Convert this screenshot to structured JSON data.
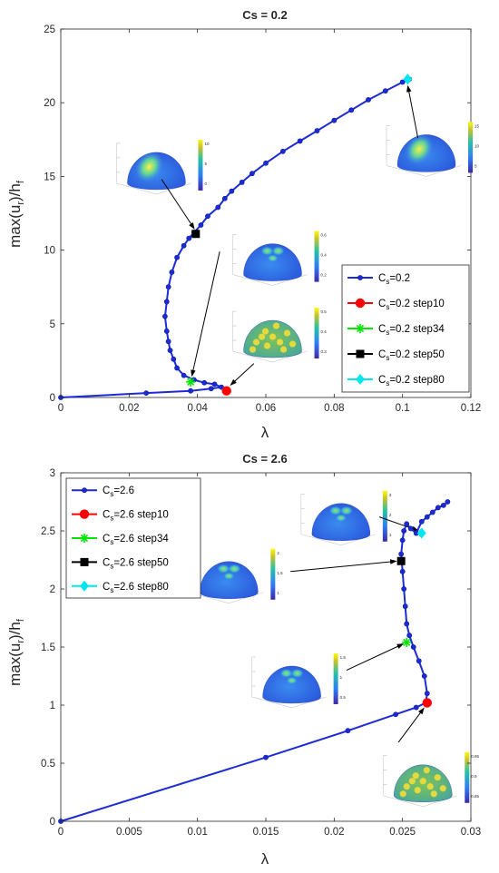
{
  "chart_data": [
    {
      "type": "line",
      "title": "Cs = 0.2",
      "xlabel": "λ",
      "ylabel": "max(u_r)/h_f",
      "ylabel_parts": {
        "a": "max(u",
        "sub1": "r",
        "b": ")/h",
        "sub2": "f"
      },
      "xlim": [
        0,
        0.12
      ],
      "ylim": [
        0,
        25
      ],
      "xticks": [
        "0",
        "0.02",
        "0.04",
        "0.06",
        "0.08",
        "0.1",
        "0.12"
      ],
      "yticks": [
        "0",
        "5",
        "10",
        "15",
        "20",
        "25"
      ],
      "legend_position": "lower-right",
      "series": [
        {
          "name": "C_s=0.2",
          "legend_base": "C",
          "legend_sub": "s",
          "legend_rest": "=0.2",
          "color": "#1c2bd6",
          "marker": "circle-small",
          "x": [
            0,
            0.025,
            0.038,
            0.044,
            0.047,
            0.045,
            0.042,
            0.039,
            0.036,
            0.034,
            0.033,
            0.032,
            0.0315,
            0.031,
            0.0305,
            0.031,
            0.0315,
            0.0325,
            0.034,
            0.036,
            0.0375,
            0.039,
            0.041,
            0.043,
            0.046,
            0.048,
            0.05,
            0.053,
            0.056,
            0.06,
            0.065,
            0.07,
            0.075,
            0.08,
            0.085,
            0.09,
            0.095,
            0.1,
            0.102
          ],
          "y": [
            0,
            0.3,
            0.45,
            0.6,
            0.7,
            0.9,
            1.0,
            1.2,
            1.5,
            2.0,
            2.6,
            3.2,
            3.8,
            4.5,
            5.5,
            6.5,
            7.5,
            8.5,
            9.5,
            10.3,
            10.8,
            11.2,
            11.7,
            12.3,
            12.9,
            13.5,
            14.0,
            14.6,
            15.2,
            15.9,
            16.7,
            17.4,
            18.1,
            18.8,
            19.5,
            20.2,
            20.8,
            21.4,
            21.6
          ]
        },
        {
          "name": "C_s=0.2 step10",
          "legend_base": "C",
          "legend_sub": "s",
          "legend_rest": "=0.2 step10",
          "color": "#ff0000",
          "marker": "circle",
          "x": [
            0.0485
          ],
          "y": [
            0.45
          ]
        },
        {
          "name": "C_s=0.2 step34",
          "legend_base": "C",
          "legend_sub": "s",
          "legend_rest": "=0.2 step34",
          "color": "#00e600",
          "marker": "asterisk",
          "x": [
            0.038
          ],
          "y": [
            1.05
          ]
        },
        {
          "name": "C_s=0.2 step50",
          "legend_base": "C",
          "legend_sub": "s",
          "legend_rest": "=0.2 step50",
          "color": "#000000",
          "marker": "square",
          "x": [
            0.0395
          ],
          "y": [
            11.1
          ]
        },
        {
          "name": "C_s=0.2 step80",
          "legend_base": "C",
          "legend_sub": "s",
          "legend_rest": "=0.2 step80",
          "color": "#00e5ee",
          "marker": "diamond",
          "x": [
            0.1015
          ],
          "y": [
            21.6
          ]
        }
      ],
      "arrows": [
        {
          "from": [
            0.0295,
            14.8
          ],
          "to": [
            0.0392,
            11.4
          ]
        },
        {
          "from": [
            0.0465,
            9.9
          ],
          "to": [
            0.0383,
            1.4
          ]
        },
        {
          "from": [
            0.0565,
            2.3
          ],
          "to": [
            0.0495,
            0.8
          ]
        },
        {
          "from": [
            0.1045,
            17.6
          ],
          "to": [
            0.1015,
            21.2
          ]
        }
      ],
      "insets": [
        {
          "at": [
            0.028,
            15.4
          ],
          "colormap": "spot-large",
          "colorbar_ticks": [
            "10",
            "5",
            "0"
          ]
        },
        {
          "at": [
            0.062,
            9.2
          ],
          "colormap": "spot-top",
          "colorbar_ticks": [
            "0.6",
            "0.4",
            "0.2"
          ]
        },
        {
          "at": [
            0.062,
            4.0
          ],
          "colormap": "polka",
          "colorbar_ticks": [
            "0.5",
            "0.4",
            "0.3"
          ]
        },
        {
          "at": [
            0.107,
            16.6
          ],
          "colormap": "spot-large",
          "colorbar_ticks": [
            "15",
            "10",
            "5"
          ]
        }
      ]
    },
    {
      "type": "line",
      "title": "Cs = 2.6",
      "xlabel": "λ",
      "ylabel": "max(u_r)/h_f",
      "ylabel_parts": {
        "a": "max(u",
        "sub1": "r",
        "b": ")/h",
        "sub2": "f"
      },
      "xlim": [
        0,
        0.03
      ],
      "ylim": [
        0,
        3
      ],
      "xticks": [
        "0",
        "0.005",
        "0.01",
        "0.015",
        "0.02",
        "0.025",
        "0.03"
      ],
      "yticks": [
        "0",
        "0.5",
        "1",
        "1.5",
        "2",
        "2.5",
        "3"
      ],
      "legend_position": "upper-left",
      "series": [
        {
          "name": "C_s=2.6",
          "legend_base": "C",
          "legend_sub": "s",
          "legend_rest": "=2.6",
          "color": "#1c2bd6",
          "marker": "circle-small",
          "x": [
            0,
            0.015,
            0.021,
            0.0245,
            0.026,
            0.0267,
            0.0268,
            0.0266,
            0.0262,
            0.0258,
            0.0255,
            0.0253,
            0.0252,
            0.0251,
            0.025,
            0.0249,
            0.025,
            0.0251,
            0.0253,
            0.0256,
            0.026,
            0.0264,
            0.0268,
            0.0272,
            0.0276,
            0.028,
            0.0283
          ],
          "y": [
            0,
            0.55,
            0.78,
            0.92,
            0.98,
            1.02,
            1.1,
            1.25,
            1.38,
            1.5,
            1.6,
            1.7,
            1.85,
            2.0,
            2.15,
            2.3,
            2.42,
            2.5,
            2.56,
            2.52,
            2.48,
            2.58,
            2.62,
            2.66,
            2.7,
            2.72,
            2.75
          ]
        },
        {
          "name": "C_s=2.6 step10",
          "legend_base": "C",
          "legend_sub": "s",
          "legend_rest": "=2.6 step10",
          "color": "#ff0000",
          "marker": "circle",
          "x": [
            0.0268
          ],
          "y": [
            1.02
          ]
        },
        {
          "name": "C_s=2.6 step34",
          "legend_base": "C",
          "legend_sub": "s",
          "legend_rest": "=2.6 step34",
          "color": "#00e600",
          "marker": "asterisk",
          "x": [
            0.0253
          ],
          "y": [
            1.54
          ]
        },
        {
          "name": "C_s=2.6 step50",
          "legend_base": "C",
          "legend_sub": "s",
          "legend_rest": "=2.6 step50",
          "color": "#000000",
          "marker": "square",
          "x": [
            0.0249
          ],
          "y": [
            2.24
          ]
        },
        {
          "name": "C_s=2.6 step80",
          "legend_base": "C",
          "legend_sub": "s",
          "legend_rest": "=2.6 step80",
          "color": "#00e5ee",
          "marker": "diamond",
          "x": [
            0.0264
          ],
          "y": [
            2.48
          ]
        }
      ],
      "arrows": [
        {
          "from": [
            0.0233,
            2.62
          ],
          "to": [
            0.0262,
            2.5
          ]
        },
        {
          "from": [
            0.0168,
            2.15
          ],
          "to": [
            0.0246,
            2.24
          ]
        },
        {
          "from": [
            0.0209,
            1.3
          ],
          "to": [
            0.0251,
            1.53
          ]
        },
        {
          "from": [
            0.0247,
            0.68
          ],
          "to": [
            0.0266,
            0.98
          ]
        }
      ],
      "insets": [
        {
          "at": [
            0.0205,
            2.58
          ],
          "colormap": "spot-top",
          "colorbar_ticks": [
            "3",
            "2",
            "1"
          ]
        },
        {
          "at": [
            0.0123,
            2.08
          ],
          "colormap": "spot-top",
          "colorbar_ticks": [
            "2",
            "1.5",
            "1"
          ]
        },
        {
          "at": [
            0.0169,
            1.18
          ],
          "colormap": "spot-top",
          "colorbar_ticks": [
            "1.5",
            "1",
            "0.5"
          ]
        },
        {
          "at": [
            0.0265,
            0.33
          ],
          "colormap": "polka",
          "colorbar_ticks": [
            "0.95",
            "0.9",
            "0.85"
          ]
        }
      ]
    }
  ]
}
